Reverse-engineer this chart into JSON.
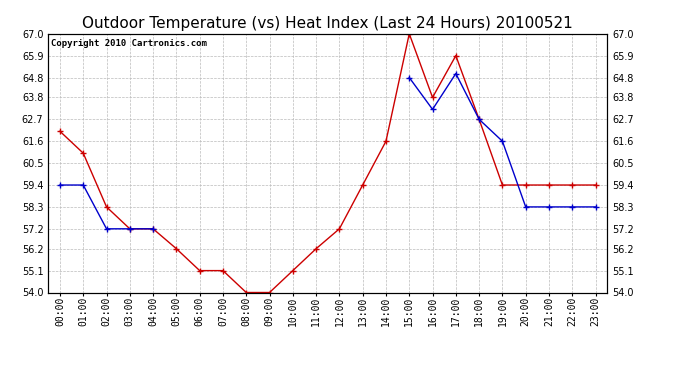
{
  "title": "Outdoor Temperature (vs) Heat Index (Last 24 Hours) 20100521",
  "copyright_text": "Copyright 2010 Cartronics.com",
  "x_labels": [
    "00:00",
    "01:00",
    "02:00",
    "03:00",
    "04:00",
    "05:00",
    "06:00",
    "07:00",
    "08:00",
    "09:00",
    "10:00",
    "11:00",
    "12:00",
    "13:00",
    "14:00",
    "15:00",
    "16:00",
    "17:00",
    "18:00",
    "19:00",
    "20:00",
    "21:00",
    "22:00",
    "23:00"
  ],
  "y_min": 54.0,
  "y_max": 67.0,
  "y_ticks": [
    54.0,
    55.1,
    56.2,
    57.2,
    58.3,
    59.4,
    60.5,
    61.6,
    62.7,
    63.8,
    64.8,
    65.9,
    67.0
  ],
  "temp_data": [
    62.1,
    61.0,
    58.3,
    57.2,
    57.2,
    56.2,
    55.1,
    55.1,
    54.0,
    54.0,
    55.1,
    56.2,
    57.2,
    59.4,
    61.6,
    67.0,
    63.8,
    65.9,
    62.7,
    59.4,
    59.4,
    59.4,
    59.4,
    59.4
  ],
  "heat_data": [
    59.4,
    59.4,
    57.2,
    57.2,
    57.2,
    null,
    null,
    null,
    null,
    null,
    null,
    null,
    null,
    null,
    null,
    64.8,
    63.2,
    65.0,
    62.7,
    61.6,
    58.3,
    58.3,
    58.3,
    58.3
  ],
  "temp_color": "#cc0000",
  "heat_color": "#0000cc",
  "grid_color": "#bbbbbb",
  "bg_color": "#ffffff",
  "title_fontsize": 11,
  "tick_fontsize": 7,
  "copyright_fontsize": 6.5
}
